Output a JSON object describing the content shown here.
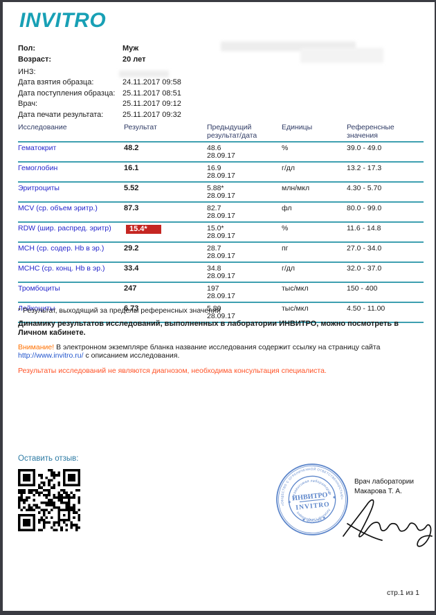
{
  "logo": "INVITRO",
  "colors": {
    "logo_teal": "#18a0b5",
    "table_line_teal": "#3d9fb0",
    "header_navy": "#2e3a64",
    "test_link_blue": "#2424cc",
    "flag_red": "#c52622",
    "attention_orange": "#ff7000",
    "disclaimer_orange": "#ff5226",
    "feedback_blue": "#2e7ba4",
    "stamp_blue": "#5e87cb"
  },
  "patient": {
    "rows": [
      {
        "label": "Пол:",
        "value": "Муж",
        "bold": true
      },
      {
        "label": "Возраст:",
        "value": "20 лет",
        "bold": true
      },
      {
        "label": "ИНЗ:",
        "value": "",
        "gap_before": true
      },
      {
        "label": "Дата взятия образца:",
        "value": "24.11.2017 09:58"
      },
      {
        "label": "Дата поступления образца:",
        "value": "25.11.2017 08:51"
      },
      {
        "label": "Врач:",
        "value": "25.11.2017 09:12"
      },
      {
        "label": "Дата печати результата:",
        "value": "25.11.2017 09:32"
      }
    ]
  },
  "results_table": {
    "headers": [
      "Исследование",
      "Результат",
      "Предыдущий результат/дата",
      "Единицы",
      "Референсные значения"
    ],
    "rows": [
      {
        "name": "Гематокрит",
        "result": "48.2",
        "flagged": false,
        "previous": "48.6",
        "previous_date": "28.09.17",
        "units": "%",
        "reference": "39.0 - 49.0"
      },
      {
        "name": "Гемоглобин",
        "result": "16.1",
        "flagged": false,
        "previous": "16.9",
        "previous_date": "28.09.17",
        "units": "г/дл",
        "reference": "13.2 - 17.3"
      },
      {
        "name": "Эритроциты",
        "result": "5.52",
        "flagged": false,
        "previous": "5.88*",
        "previous_date": "28.09.17",
        "units": "млн/мкл",
        "reference": "4.30 - 5.70"
      },
      {
        "name": "MCV (ср. объем эритр.)",
        "result": "87.3",
        "flagged": false,
        "previous": "82.7",
        "previous_date": "28.09.17",
        "units": "фл",
        "reference": "80.0 - 99.0"
      },
      {
        "name": "RDW (шир. распред. эритр)",
        "result": "15.4*",
        "flagged": true,
        "previous": "15.0*",
        "previous_date": "28.09.17",
        "units": "%",
        "reference": "11.6 - 14.8"
      },
      {
        "name": "MCH (ср. содер. Hb в эр.)",
        "result": "29.2",
        "flagged": false,
        "previous": "28.7",
        "previous_date": "28.09.17",
        "units": "пг",
        "reference": "27.0 - 34.0"
      },
      {
        "name": "MCHC (ср. конц. Hb в эр.)",
        "result": "33.4",
        "flagged": false,
        "previous": "34.8",
        "previous_date": "28.09.17",
        "units": "г/дл",
        "reference": "32.0 - 37.0"
      },
      {
        "name": "Тромбоциты",
        "result": "247",
        "flagged": false,
        "previous": "197",
        "previous_date": "28.09.17",
        "units": "тыс/мкл",
        "reference": "150 - 400"
      },
      {
        "name": "Лейкоциты",
        "result": "6.73",
        "flagged": false,
        "previous": "5.80",
        "previous_date": "28.09.17",
        "units": "тыс/мкл",
        "reference": "4.50 - 11.00"
      }
    ]
  },
  "footnotes": {
    "asterisk_note": "* Результат, выходящий за пределы референсных значений",
    "dynamics_note": "Динамику результатов исследований, выполненных в лаборатории ИНВИТРО, можно посмотреть в Личном кабинете.",
    "attention_label": "Внимание!",
    "attention_text_1": " В электронном экземпляре бланка название исследования содержит ссылку на страницу сайта ",
    "attention_link": "http://www.invitro.ru/",
    "attention_text_2": " с описанием исследования.",
    "disclaimer": "Результаты исследований не являются диагнозом, необходима консультация специалиста."
  },
  "footer": {
    "feedback_label": "Оставить отзыв:",
    "doctor_title": "Врач лаборатории",
    "doctor_name": "Макарова Т. А.",
    "page_number": "стр.1 из 1"
  },
  "stamp": {
    "outer_ring_text": "«ОБЩЕСТВО С ОГРАНИЧЕННОЙ ОТВЕТСТВЕННОСТЬЮ»",
    "outer_bottom_text": "✱ МОСКВА ✱",
    "inner_top_text": "Независимая лаборатория",
    "inner_bottom_text": "Independent Laboratory",
    "center_line1": "ИНВИТРО\"",
    "center_line2": "INVITRO"
  }
}
